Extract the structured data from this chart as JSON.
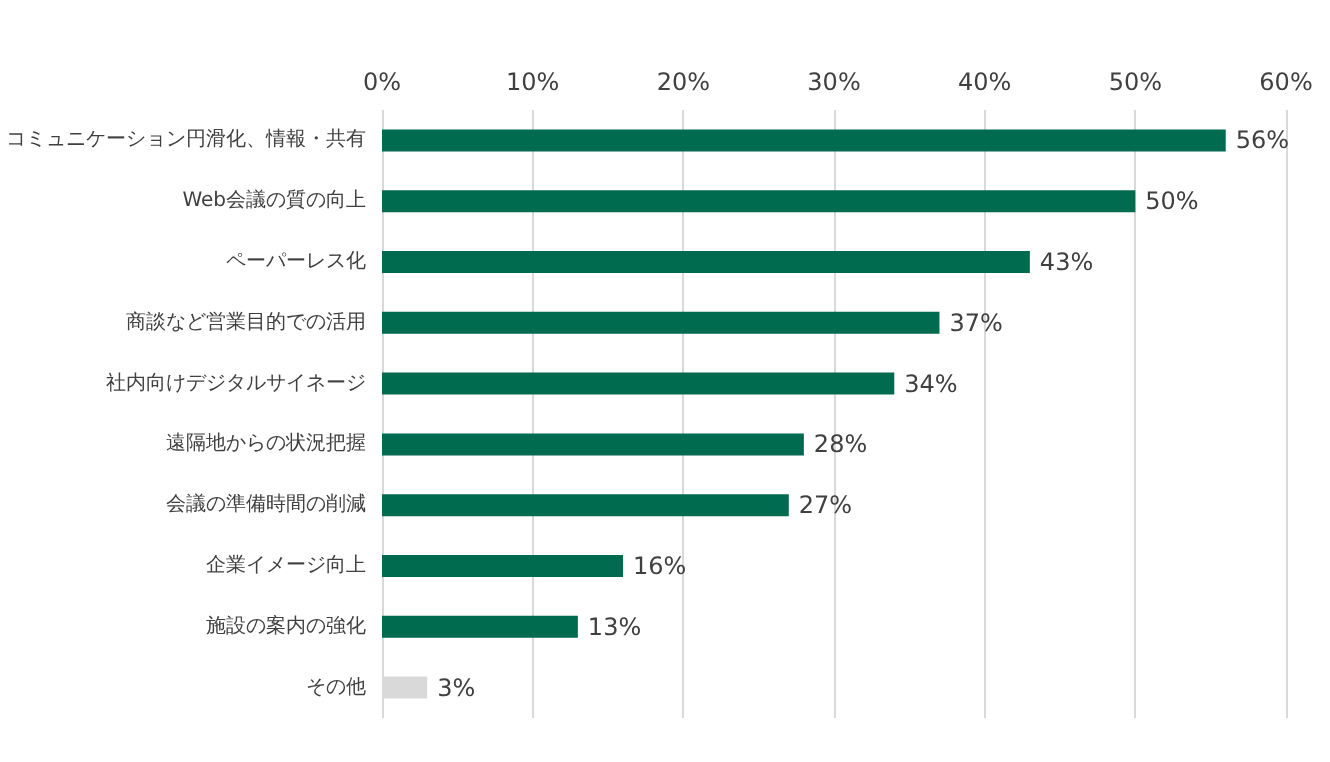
{
  "chart_data": {
    "type": "bar",
    "orientation": "horizontal",
    "categories": [
      "コミュニケーション円滑化、情報・共有",
      "Web会議の質の向上",
      "ペーパーレス化",
      "商談など営業目的での活用",
      "社内向けデジタルサイネージ",
      "遠隔地からの状況把握",
      "会議の準備時間の削減",
      "企業イメージ向上",
      "施設の案内の強化",
      "その他"
    ],
    "values": [
      56,
      50,
      43,
      37,
      34,
      28,
      27,
      16,
      13,
      3
    ],
    "colors": [
      "#006b4f",
      "#006b4f",
      "#006b4f",
      "#006b4f",
      "#006b4f",
      "#006b4f",
      "#006b4f",
      "#006b4f",
      "#006b4f",
      "#d9d9d9"
    ],
    "value_labels": [
      "56%",
      "50%",
      "43%",
      "37%",
      "34%",
      "28%",
      "27%",
      "16%",
      "13%",
      "3%"
    ],
    "xlim": [
      0,
      60
    ],
    "xticks": [
      {
        "value": 0,
        "label": "0%"
      },
      {
        "value": 10,
        "label": "10%"
      },
      {
        "value": 20,
        "label": "20%"
      },
      {
        "value": 30,
        "label": "30%"
      },
      {
        "value": 40,
        "label": "40%"
      },
      {
        "value": 50,
        "label": "50%"
      },
      {
        "value": 60,
        "label": "60%"
      }
    ],
    "grid": "x"
  }
}
